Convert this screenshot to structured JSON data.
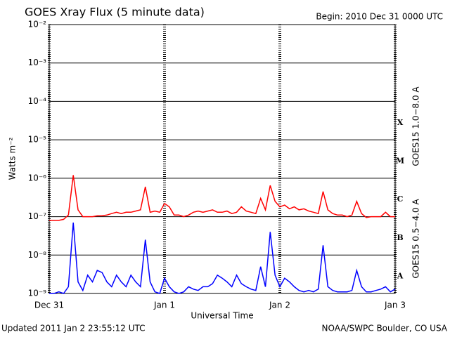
{
  "chart_data": {
    "type": "line",
    "title": "GOES Xray Flux (5 minute data)",
    "subtitle": "Begin:  2010 Dec 31 0000 UTC",
    "y_label": "Watts m⁻²",
    "x_label": "Universal Time",
    "footer_left": "Updated 2011 Jan  2 23:55:12 UTC",
    "footer_right": "NOAA/SWPC Boulder, CO USA",
    "yscale": "log",
    "grid": true,
    "ylim": [
      1e-09,
      0.01
    ],
    "yticks": [
      {
        "value": 1e-09,
        "label": "10⁻⁹"
      },
      {
        "value": 1e-08,
        "label": "10⁻⁸"
      },
      {
        "value": 1e-07,
        "label": "10⁻⁷"
      },
      {
        "value": 1e-06,
        "label": "10⁻⁶"
      },
      {
        "value": 1e-05,
        "label": "10⁻⁵"
      },
      {
        "value": 0.0001,
        "label": "10⁻⁴"
      },
      {
        "value": 0.001,
        "label": "10⁻³"
      },
      {
        "value": 0.01,
        "label": "10⁻²"
      }
    ],
    "xlim": [
      0,
      72
    ],
    "xticks": [
      {
        "value": 0,
        "label": "Dec 31"
      },
      {
        "value": 24,
        "label": "Jan 1"
      },
      {
        "value": 48,
        "label": "Jan 2"
      },
      {
        "value": 72,
        "label": "Jan 3"
      }
    ],
    "class_labels": [
      "X",
      "M",
      "C",
      "B",
      "A"
    ],
    "x": [
      0,
      1,
      2,
      3,
      4,
      5,
      6,
      7,
      8,
      9,
      10,
      11,
      12,
      13,
      14,
      15,
      16,
      17,
      18,
      19,
      20,
      21,
      22,
      23,
      24,
      25,
      26,
      27,
      28,
      29,
      30,
      31,
      32,
      33,
      34,
      35,
      36,
      37,
      38,
      39,
      40,
      41,
      42,
      43,
      44,
      45,
      46,
      47,
      48,
      49,
      50,
      51,
      52,
      53,
      54,
      55,
      56,
      57,
      58,
      59,
      60,
      61,
      62,
      63,
      64,
      65,
      66,
      67,
      68,
      69,
      70,
      71,
      72
    ],
    "series": [
      {
        "name": "GOES15 1.0−8.0 A",
        "color": "#ff0000",
        "values": [
          8e-08,
          8e-08,
          8e-08,
          8.5e-08,
          1.1e-07,
          1.2e-06,
          1.5e-07,
          1e-07,
          1e-07,
          1e-07,
          1.05e-07,
          1.05e-07,
          1.1e-07,
          1.2e-07,
          1.3e-07,
          1.2e-07,
          1.3e-07,
          1.3e-07,
          1.4e-07,
          1.5e-07,
          6e-07,
          1.3e-07,
          1.4e-07,
          1.3e-07,
          2.2e-07,
          1.8e-07,
          1.1e-07,
          1.1e-07,
          1e-07,
          1.1e-07,
          1.3e-07,
          1.4e-07,
          1.3e-07,
          1.4e-07,
          1.5e-07,
          1.3e-07,
          1.3e-07,
          1.4e-07,
          1.2e-07,
          1.3e-07,
          1.8e-07,
          1.4e-07,
          1.3e-07,
          1.2e-07,
          3e-07,
          1.5e-07,
          6.5e-07,
          2.5e-07,
          1.8e-07,
          2e-07,
          1.6e-07,
          1.8e-07,
          1.5e-07,
          1.6e-07,
          1.4e-07,
          1.3e-07,
          1.2e-07,
          4.5e-07,
          1.5e-07,
          1.2e-07,
          1.1e-07,
          1.1e-07,
          1e-07,
          1.1e-07,
          2.5e-07,
          1.2e-07,
          9.5e-08,
          1e-07,
          1e-07,
          1e-07,
          1.3e-07,
          1e-07,
          1e-07
        ]
      },
      {
        "name": "GOES15 0.5−4.0 A",
        "color": "#0000ff",
        "values": [
          1e-09,
          1e-09,
          1.1e-09,
          1e-09,
          1.5e-09,
          7e-08,
          2e-09,
          1.2e-09,
          3e-09,
          2e-09,
          4e-09,
          3.5e-09,
          2e-09,
          1.5e-09,
          3e-09,
          2e-09,
          1.5e-09,
          3e-09,
          2e-09,
          1.5e-09,
          2.5e-08,
          2e-09,
          1.1e-09,
          1e-09,
          2.5e-09,
          1.5e-09,
          1.1e-09,
          1e-09,
          1.1e-09,
          1.5e-09,
          1.3e-09,
          1.2e-09,
          1.5e-09,
          1.5e-09,
          1.8e-09,
          3e-09,
          2.5e-09,
          2e-09,
          1.5e-09,
          3e-09,
          1.8e-09,
          1.5e-09,
          1.3e-09,
          1.2e-09,
          5e-09,
          1.5e-09,
          4e-08,
          3e-09,
          1.5e-09,
          2.5e-09,
          2e-09,
          1.5e-09,
          1.2e-09,
          1.1e-09,
          1.2e-09,
          1.1e-09,
          1.3e-09,
          1.8e-08,
          1.5e-09,
          1.2e-09,
          1.1e-09,
          1.1e-09,
          1.1e-09,
          1.2e-09,
          4e-09,
          1.5e-09,
          1.1e-09,
          1.1e-09,
          1.2e-09,
          1.3e-09,
          1.5e-09,
          1.1e-09,
          1.3e-09
        ]
      }
    ]
  }
}
